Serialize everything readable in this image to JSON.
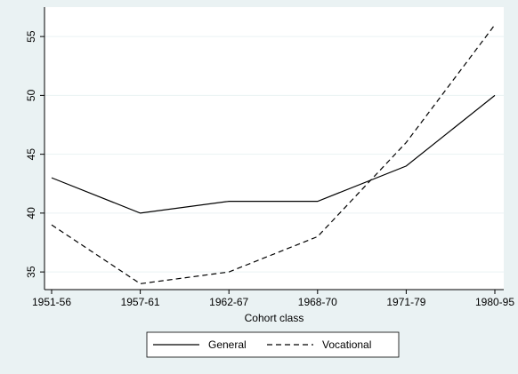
{
  "chart_data": {
    "type": "line",
    "x_label": "Cohort class",
    "categories": [
      "1951-56",
      "1957-61",
      "1962-67",
      "1968-70",
      "1971-79",
      "1980-95"
    ],
    "series": [
      {
        "name": "General",
        "color": "#000000",
        "style": "solid",
        "values": [
          43,
          40,
          41,
          41,
          44,
          50
        ]
      },
      {
        "name": "Vocational",
        "color": "#000000",
        "style": "dashed",
        "values": [
          39,
          34,
          35,
          38,
          46,
          56
        ]
      }
    ],
    "ylim": [
      33.5,
      57.5
    ],
    "yticks": [
      35,
      40,
      45,
      50,
      55
    ],
    "grid": true,
    "legend": "bottom"
  }
}
